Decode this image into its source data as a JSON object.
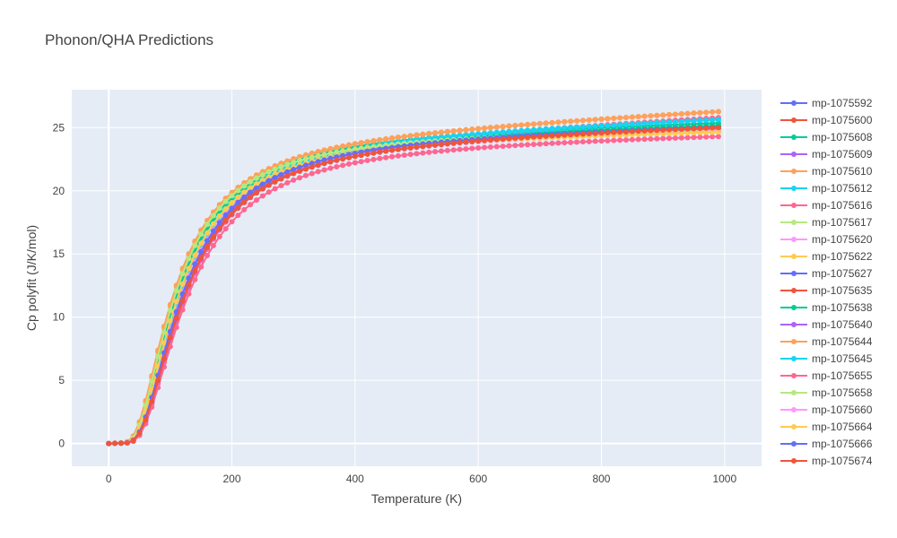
{
  "chart_data": {
    "type": "line",
    "title": "Phonon/QHA Predictions",
    "xlabel": "Temperature (K)",
    "ylabel": "Cp polyfit (J/K/mol)",
    "xlim": [
      -60,
      1060
    ],
    "ylim": [
      -1.8,
      28.0
    ],
    "xticks": [
      0,
      200,
      400,
      600,
      800,
      1000
    ],
    "yticks": [
      0,
      5,
      10,
      15,
      20,
      25
    ],
    "grid": true,
    "legend_position": "right",
    "x_start": 0,
    "x_step": 10,
    "x_end": 990,
    "curve_model": "Einstein-type heat capacity fitted to the plotted curves: Cp(T) = A*(theta/T)^2*exp(theta/T)/(exp(theta/T)-1)^2 + B*T, sampled every 10 K from 0 to 990 K",
    "series": [
      {
        "name": "mp-1075592",
        "color": "#636efa",
        "A": 24.2,
        "theta": 365,
        "B": 0.0012
      },
      {
        "name": "mp-1075600",
        "color": "#EF553B",
        "A": 24.0,
        "theta": 372,
        "B": 0.0013
      },
      {
        "name": "mp-1075608",
        "color": "#00cc96",
        "A": 24.4,
        "theta": 338,
        "B": 0.0012
      },
      {
        "name": "mp-1075609",
        "color": "#ab63fa",
        "A": 23.9,
        "theta": 378,
        "B": 0.0013
      },
      {
        "name": "mp-1075610",
        "color": "#FFA15A",
        "A": 24.0,
        "theta": 325,
        "B": 0.0025
      },
      {
        "name": "mp-1075612",
        "color": "#19d3f3",
        "A": 24.1,
        "theta": 350,
        "B": 0.0018
      },
      {
        "name": "mp-1075616",
        "color": "#FF6692",
        "A": 23.8,
        "theta": 385,
        "B": 0.0023
      },
      {
        "name": "mp-1075617",
        "color": "#B6E880",
        "A": 24.3,
        "theta": 330,
        "B": 0.0007
      },
      {
        "name": "mp-1075620",
        "color": "#FF97FF",
        "A": 24.0,
        "theta": 360,
        "B": 0.001
      },
      {
        "name": "mp-1075622",
        "color": "#FECB52",
        "A": 24.1,
        "theta": 345,
        "B": 0.0008
      },
      {
        "name": "mp-1075627",
        "color": "#636efa",
        "A": 24.2,
        "theta": 368,
        "B": 0.0011
      },
      {
        "name": "mp-1075635",
        "color": "#EF553B",
        "A": 23.9,
        "theta": 375,
        "B": 0.0014
      },
      {
        "name": "mp-1075638",
        "color": "#00cc96",
        "A": 24.3,
        "theta": 340,
        "B": 0.0011
      },
      {
        "name": "mp-1075640",
        "color": "#ab63fa",
        "A": 24.0,
        "theta": 380,
        "B": 0.0012
      },
      {
        "name": "mp-1075644",
        "color": "#FFA15A",
        "A": 23.9,
        "theta": 322,
        "B": 0.0026
      },
      {
        "name": "mp-1075645",
        "color": "#19d3f3",
        "A": 24.0,
        "theta": 352,
        "B": 0.0019
      },
      {
        "name": "mp-1075655",
        "color": "#FF6692",
        "A": 23.6,
        "theta": 390,
        "B": 0.001
      },
      {
        "name": "mp-1075658",
        "color": "#B6E880",
        "A": 24.4,
        "theta": 332,
        "B": 0.0006
      },
      {
        "name": "mp-1075660",
        "color": "#FF97FF",
        "A": 24.1,
        "theta": 362,
        "B": 0.0009
      },
      {
        "name": "mp-1075664",
        "color": "#FECB52",
        "A": 24.2,
        "theta": 348,
        "B": 0.0007
      },
      {
        "name": "mp-1075666",
        "color": "#636efa",
        "A": 24.1,
        "theta": 366,
        "B": 0.0012
      },
      {
        "name": "mp-1075674",
        "color": "#EF553B",
        "A": 23.8,
        "theta": 376,
        "B": 0.0015
      }
    ]
  }
}
